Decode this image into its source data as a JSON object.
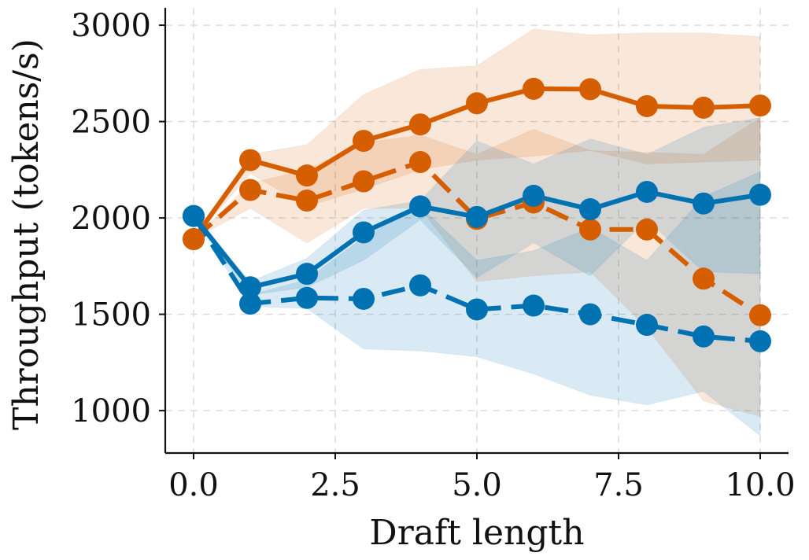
{
  "chart_data": {
    "type": "line",
    "title": "",
    "xlabel": "Draft length",
    "ylabel": "Throughput (tokens/s)",
    "xlim": [
      -0.5,
      10.5
    ],
    "ylim": [
      780,
      3090
    ],
    "x_ticks": [
      "0.0",
      "2.5",
      "5.0",
      "7.5",
      "10.0"
    ],
    "x_tick_values": [
      0,
      2.5,
      5,
      7.5,
      10
    ],
    "y_ticks": [
      "1000",
      "1500",
      "2000",
      "2500",
      "3000"
    ],
    "y_tick_values": [
      1000,
      1500,
      2000,
      2500,
      3000
    ],
    "grid": true,
    "legend": "none",
    "x": [
      0,
      1,
      2,
      3,
      4,
      5,
      6,
      7,
      8,
      9,
      10
    ],
    "series": [
      {
        "color": "#d55e00",
        "line_style": "solid",
        "values": [
          1890,
          2300,
          2220,
          2400,
          2485,
          2595,
          2670,
          2668,
          2580,
          2572,
          2583
        ],
        "band_low": [
          1890,
          2230,
          2060,
          2150,
          2250,
          2300,
          2320,
          2350,
          2280,
          2290,
          2300
        ],
        "band_high": [
          1890,
          2330,
          2380,
          2640,
          2770,
          2790,
          2980,
          2950,
          2960,
          2960,
          2940
        ]
      },
      {
        "color": "#d55e00",
        "line_style": "dashed",
        "values": [
          1890,
          2145,
          2090,
          2190,
          2290,
          1995,
          2080,
          1940,
          1940,
          1685,
          1495
        ],
        "band_low": [
          1890,
          2050,
          1870,
          2050,
          2050,
          1670,
          1700,
          1720,
          1430,
          1050,
          970
        ],
        "band_high": [
          1890,
          2180,
          2250,
          2390,
          2430,
          2330,
          2460,
          2350,
          2340,
          2330,
          2520
        ]
      },
      {
        "color": "#0072b2",
        "line_style": "solid",
        "values": [
          2010,
          1640,
          1710,
          1925,
          2060,
          2005,
          2115,
          2045,
          2135,
          2075,
          2120
        ],
        "band_low": [
          2010,
          1600,
          1640,
          1780,
          1990,
          1690,
          1870,
          1700,
          1990,
          1720,
          1710
        ],
        "band_high": [
          2010,
          1670,
          1790,
          2040,
          2090,
          2400,
          2280,
          2410,
          2330,
          2470,
          2520
        ]
      },
      {
        "color": "#0072b2",
        "line_style": "dashed",
        "values": [
          2010,
          1555,
          1585,
          1580,
          1650,
          1525,
          1545,
          1500,
          1445,
          1385,
          1360
        ],
        "band_low": [
          2010,
          1540,
          1530,
          1320,
          1310,
          1280,
          1190,
          1080,
          1030,
          1100,
          870
        ],
        "band_high": [
          2010,
          1600,
          1680,
          1900,
          2060,
          1780,
          1830,
          1950,
          1780,
          2110,
          2240
        ]
      }
    ]
  }
}
